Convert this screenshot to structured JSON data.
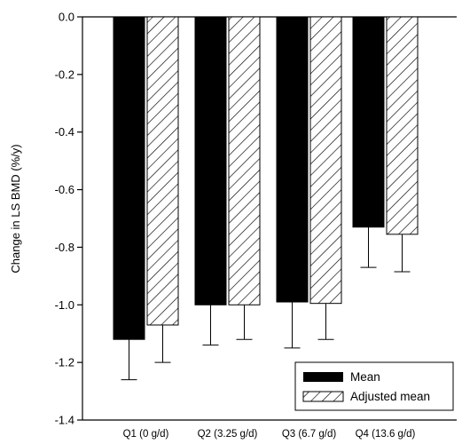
{
  "chart_data": {
    "type": "bar",
    "title": "",
    "xlabel": "",
    "ylabel": "Change in LS BMD (%/y)",
    "ylim": [
      -1.4,
      0.0
    ],
    "yticks": [
      "0.0",
      "-0.2",
      "-0.4",
      "-0.6",
      "-0.8",
      "-1.0",
      "-1.2",
      "-1.4"
    ],
    "grid": false,
    "legend_position": "bottom-right",
    "categories": [
      "Q1 (0 g/d)",
      "Q2 (3.25 g/d)",
      "Q3 (6.7 g/d)",
      "Q4 (13.6 g/d)"
    ],
    "series": [
      {
        "name": "Mean",
        "values": [
          -1.12,
          -1.0,
          -0.99,
          -0.73
        ],
        "error": [
          0.14,
          0.14,
          0.16,
          0.14
        ],
        "color": "#000000",
        "pattern": "solid"
      },
      {
        "name": "Adjusted mean",
        "values": [
          -1.07,
          -1.0,
          -0.995,
          -0.755
        ],
        "error": [
          0.13,
          0.12,
          0.125,
          0.13
        ],
        "color": "#ffffff",
        "pattern": "diagonal-hatch"
      }
    ]
  }
}
